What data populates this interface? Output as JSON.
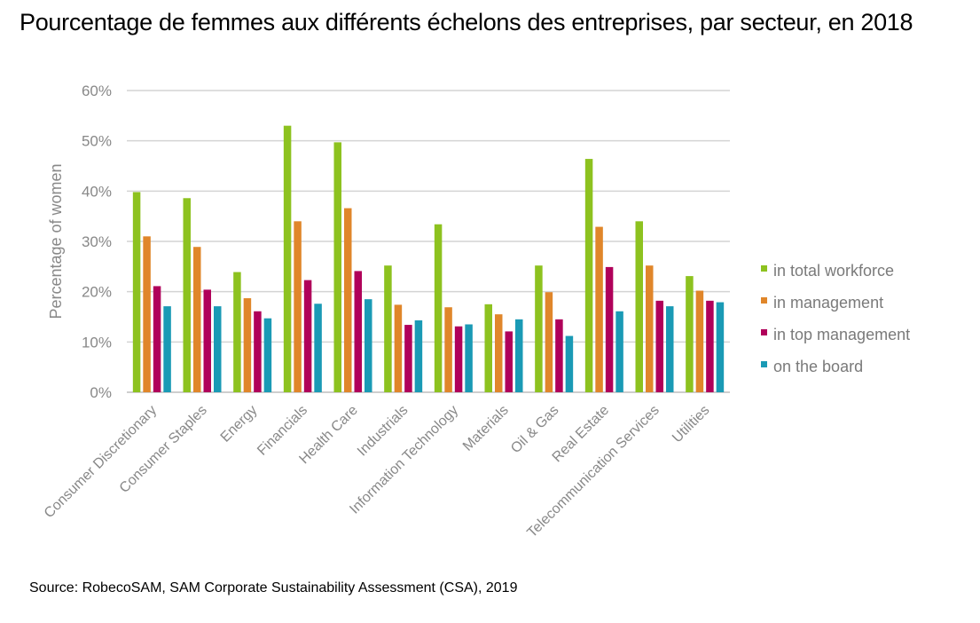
{
  "title": "Pourcentage de femmes aux différents échelons des entreprises, par secteur, en 2018",
  "source": "Source: RobecoSAM, SAM Corporate Sustainability Assessment (CSA), 2019",
  "chart_data": {
    "type": "bar",
    "title": "",
    "xlabel": "",
    "ylabel": "Percentage of women",
    "ylim": [
      0,
      60
    ],
    "yticks": [
      "0%",
      "10%",
      "20%",
      "30%",
      "40%",
      "50%",
      "60%"
    ],
    "grid": true,
    "legend_position": "right",
    "categories": [
      "Consumer Discretionary",
      "Consumer Staples",
      "Energy",
      "Financials",
      "Health Care",
      "Industrials",
      "Information Technology",
      "Materials",
      "Oil & Gas",
      "Real Estate",
      "Telecommunication Services",
      "Utilities"
    ],
    "series": [
      {
        "name": "in total workforce",
        "color": "#8dc21f",
        "values": [
          39.8,
          38.6,
          23.9,
          53.0,
          49.7,
          25.2,
          33.4,
          17.5,
          25.2,
          46.4,
          34.0,
          23.1
        ]
      },
      {
        "name": "in management",
        "color": "#e0862a",
        "values": [
          31.0,
          28.9,
          18.7,
          34.0,
          36.6,
          17.4,
          16.9,
          15.5,
          19.9,
          32.9,
          25.2,
          20.2
        ]
      },
      {
        "name": "in top management",
        "color": "#b0005a",
        "values": [
          21.1,
          20.4,
          16.1,
          22.3,
          24.1,
          13.4,
          13.1,
          12.1,
          14.5,
          24.9,
          18.2,
          18.2
        ]
      },
      {
        "name": "on the board",
        "color": "#1a9ab5",
        "values": [
          17.1,
          17.1,
          14.7,
          17.6,
          18.5,
          14.3,
          13.5,
          14.5,
          11.2,
          16.1,
          17.1,
          17.9
        ]
      }
    ]
  }
}
